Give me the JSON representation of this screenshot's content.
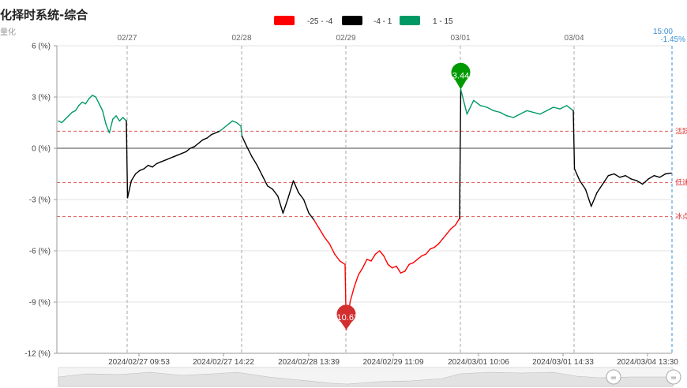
{
  "header": {
    "title": "化择时系统-综合",
    "subtitle": "量化"
  },
  "legend": [
    {
      "label": "-25 - -4",
      "color": "#ff0000"
    },
    {
      "label": "-4 - 1",
      "color": "#000000"
    },
    {
      "label": "1 - 15",
      "color": "#009966"
    }
  ],
  "day_labels": [
    "02/27",
    "02/28",
    "02/29",
    "03/01",
    "03/04"
  ],
  "current": {
    "time": "15:00",
    "value": "-1.45%"
  },
  "chart_data": {
    "type": "line",
    "y_unit": "%",
    "ylim": [
      -12,
      6
    ],
    "y_ticks": [
      "6 (%)",
      "3 (%)",
      "0 (%)",
      "-3 (%)",
      "-6 (%)",
      "-9 (%)",
      "-12 (%)"
    ],
    "y_tick_values": [
      6,
      3,
      0,
      -3,
      -6,
      -9,
      -12
    ],
    "x_tick_labels": [
      "2024/02/27 09:53",
      "2024/02/27 14:22",
      "2024/02/28 13:39",
      "2024/02/29 11:09",
      "2024/03/01 10:06",
      "2024/03/01 14:33",
      "2024/03/04 13:30"
    ],
    "reference_lines": [
      {
        "value": 1,
        "label": "活跃"
      },
      {
        "value": -2,
        "label": "低迷"
      },
      {
        "value": -4,
        "label": "冰点"
      }
    ],
    "color_bands": [
      {
        "range": [
          -25,
          -4
        ],
        "color": "#ff0000"
      },
      {
        "range": [
          -4,
          1
        ],
        "color": "#000000"
      },
      {
        "range": [
          1,
          15
        ],
        "color": "#009966"
      }
    ],
    "series": [
      {
        "values": [
          1.6,
          1.5,
          1.7,
          1.9,
          2.1,
          2.2,
          2.5,
          2.7,
          2.6,
          2.9,
          3.1,
          3.0,
          2.6,
          2.2,
          1.4,
          0.9,
          1.7,
          1.9,
          1.6,
          1.8,
          1.6,
          -2.9,
          -1.9,
          -1.5,
          -1.3,
          -1.2,
          -1.0,
          -1.1,
          -0.9,
          -0.8,
          -0.7,
          -0.6,
          -0.5,
          -0.4,
          -0.3,
          -0.2,
          0.0,
          0.1,
          0.3,
          0.5,
          0.6,
          0.8,
          0.9,
          1.0,
          1.2,
          1.4,
          1.6,
          1.5,
          1.3,
          0.7,
          0.1,
          -0.5,
          -1.0,
          -1.6,
          -2.2,
          -2.4,
          -2.8,
          -3.8,
          -2.9,
          -1.9,
          -2.6,
          -3.0,
          -3.8,
          -4.2,
          -4.7,
          -5.2,
          -5.6,
          -6.2,
          -6.6,
          -6.8,
          -10.62,
          -9.0,
          -8.1,
          -7.4,
          -7.0,
          -6.5,
          -6.6,
          -6.2,
          -6.0,
          -6.3,
          -6.8,
          -7.0,
          -6.9,
          -7.3,
          -7.2,
          -6.8,
          -6.7,
          -6.5,
          -6.3,
          -6.2,
          -5.9,
          -5.8,
          -5.6,
          -5.3,
          -5.0,
          -4.7,
          -4.5,
          -4.1,
          3.44,
          2.0,
          2.8,
          2.5,
          2.4,
          2.2,
          2.1,
          1.9,
          1.8,
          2.0,
          2.2,
          2.1,
          2.0,
          2.2,
          2.4,
          2.3,
          2.5,
          2.2,
          -1.2,
          -1.9,
          -2.4,
          -3.4,
          -2.6,
          -2.1,
          -1.6,
          -1.5,
          -1.7,
          -1.6,
          -1.8,
          -1.9,
          -2.1,
          -1.8,
          -1.6,
          -1.7,
          -1.5,
          -1.45
        ]
      }
    ],
    "markers": [
      {
        "label": "3.44",
        "value": 3.44,
        "type": "max",
        "color": "#009900"
      },
      {
        "label": "-10.62",
        "value": -10.62,
        "type": "min",
        "color": "#d32f2f"
      }
    ]
  }
}
